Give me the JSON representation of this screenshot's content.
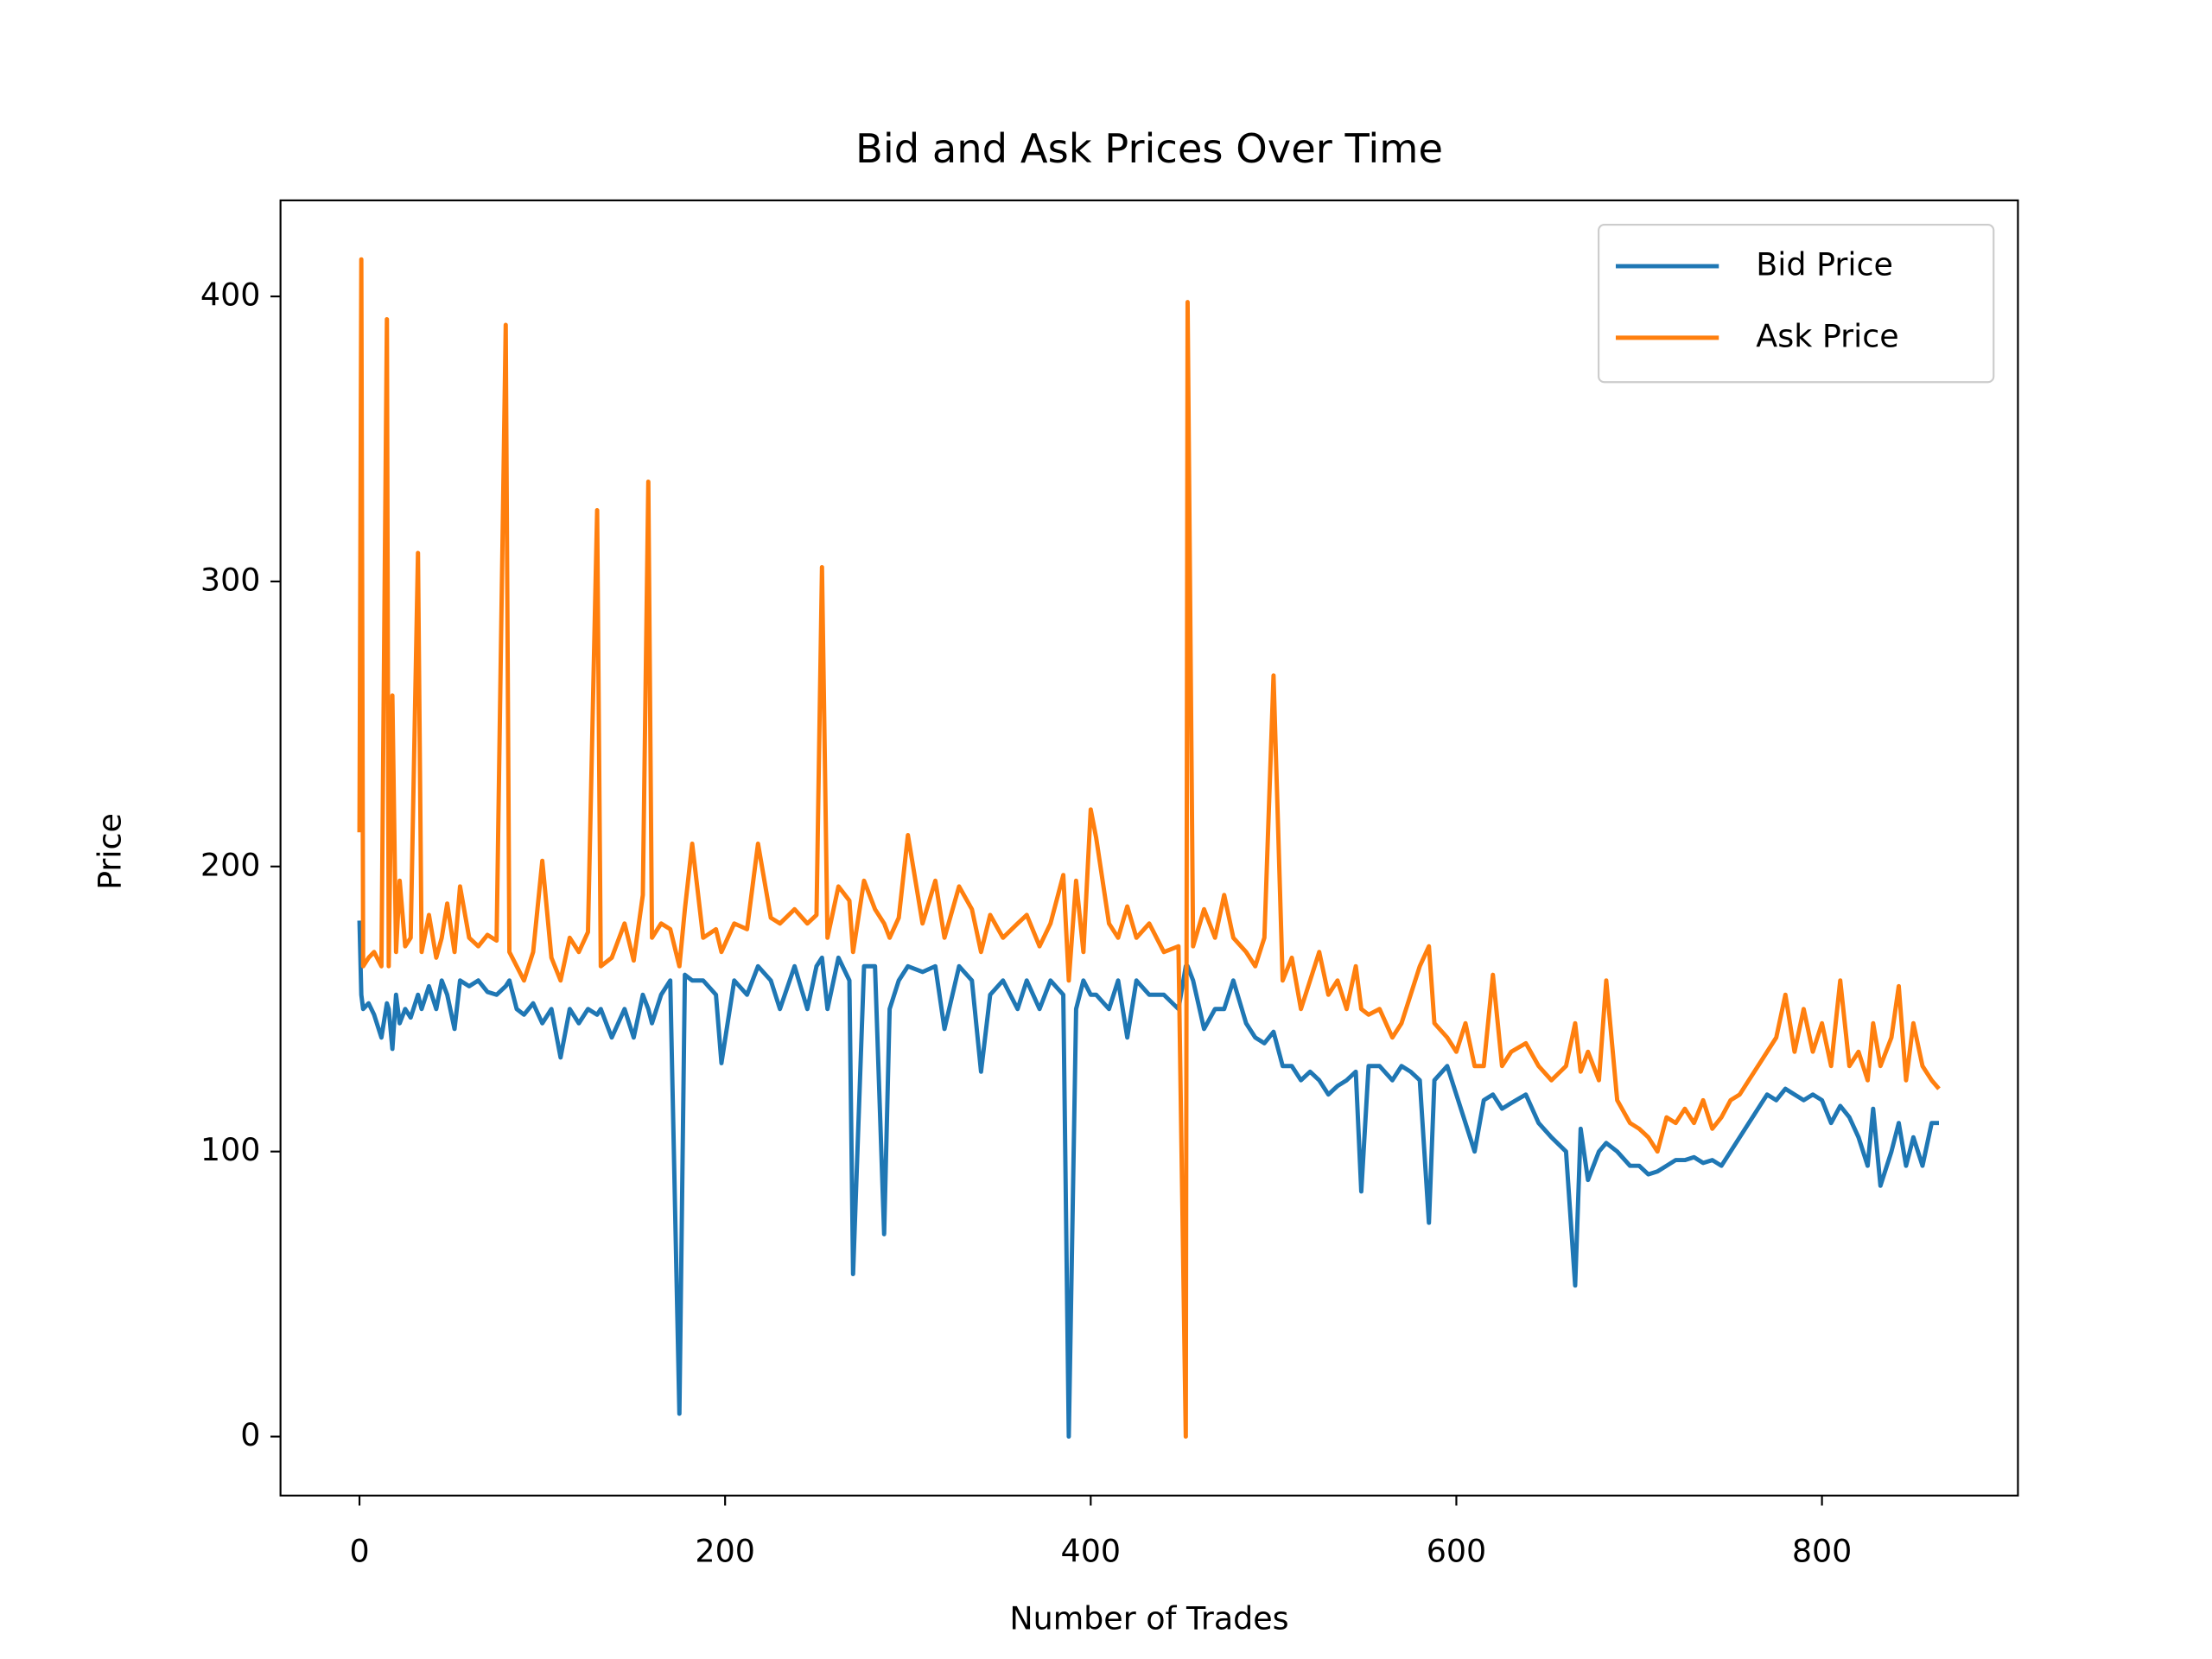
{
  "chart_data": {
    "type": "line",
    "title": "Bid and Ask Prices Over Time",
    "xlabel": "Number of Trades",
    "ylabel": "Price",
    "x": [
      0,
      1,
      2,
      5,
      8,
      12,
      15,
      16,
      18,
      20,
      22,
      25,
      28,
      32,
      34,
      38,
      42,
      45,
      48,
      52,
      55,
      60,
      65,
      70,
      75,
      80,
      82,
      86,
      90,
      95,
      100,
      105,
      110,
      115,
      120,
      125,
      130,
      132,
      138,
      145,
      150,
      155,
      158,
      160,
      165,
      170,
      175,
      178,
      182,
      188,
      195,
      198,
      205,
      212,
      218,
      225,
      230,
      238,
      245,
      250,
      253,
      256,
      262,
      268,
      270,
      276,
      282,
      287,
      290,
      295,
      300,
      308,
      315,
      320,
      328,
      335,
      340,
      345,
      352,
      360,
      365,
      372,
      378,
      385,
      388,
      392,
      396,
      400,
      403,
      410,
      415,
      420,
      425,
      432,
      440,
      448,
      452,
      453,
      456,
      462,
      468,
      473,
      478,
      485,
      490,
      495,
      500,
      505,
      510,
      515,
      520,
      525,
      530,
      535,
      540,
      545,
      548,
      552,
      558,
      565,
      570,
      575,
      580,
      585,
      588,
      595,
      600,
      605,
      610,
      615,
      620,
      625,
      630,
      638,
      645,
      652,
      660,
      665,
      668,
      672,
      678,
      682,
      688,
      695,
      700,
      705,
      710,
      715,
      720,
      725,
      730,
      735,
      740,
      745,
      750,
      755,
      760,
      765,
      770,
      775,
      780,
      785,
      790,
      795,
      800,
      805,
      810,
      815,
      820,
      825,
      828,
      832,
      838,
      842,
      846,
      850,
      855,
      860,
      864
    ],
    "series": [
      {
        "name": "Bid Price",
        "color": "#1f77b4",
        "values": [
          181,
          155,
          150,
          152,
          148,
          140,
          152,
          150,
          136,
          155,
          145,
          150,
          147,
          155,
          150,
          158,
          150,
          160,
          155,
          143,
          160,
          158,
          160,
          156,
          155,
          158,
          160,
          150,
          148,
          152,
          145,
          150,
          133,
          150,
          145,
          150,
          148,
          150,
          140,
          150,
          140,
          155,
          150,
          145,
          155,
          160,
          8,
          162,
          160,
          160,
          155,
          131,
          160,
          155,
          165,
          160,
          150,
          165,
          150,
          165,
          168,
          150,
          168,
          160,
          57,
          165,
          165,
          71,
          150,
          160,
          165,
          163,
          165,
          143,
          165,
          160,
          128,
          155,
          160,
          150,
          160,
          150,
          160,
          155,
          0,
          150,
          160,
          155,
          155,
          150,
          160,
          140,
          160,
          155,
          155,
          150,
          165,
          165,
          160,
          143,
          150,
          150,
          160,
          145,
          140,
          138,
          142,
          130,
          130,
          125,
          128,
          125,
          120,
          123,
          125,
          128,
          86,
          130,
          130,
          125,
          130,
          128,
          125,
          75,
          125,
          130,
          120,
          110,
          100,
          118,
          120,
          115,
          117,
          120,
          110,
          105,
          100,
          53,
          108,
          90,
          100,
          103,
          100,
          95,
          95,
          92,
          93,
          95,
          97,
          97,
          98,
          96,
          97,
          95,
          100,
          105,
          110,
          115,
          120,
          118,
          122,
          120,
          118,
          120,
          118,
          110,
          116,
          112,
          105,
          95,
          115,
          88,
          100,
          110,
          95,
          105,
          95,
          110,
          110
        ]
      },
      {
        "name": "Ask Price",
        "color": "#ff7f0e",
        "values": [
          212,
          413,
          165,
          168,
          170,
          165,
          392,
          165,
          260,
          170,
          195,
          172,
          175,
          310,
          170,
          183,
          168,
          175,
          187,
          170,
          193,
          175,
          172,
          176,
          174,
          390,
          170,
          165,
          160,
          170,
          202,
          168,
          160,
          175,
          170,
          177,
          325,
          165,
          168,
          180,
          167,
          190,
          335,
          175,
          180,
          178,
          165,
          185,
          208,
          175,
          178,
          170,
          180,
          178,
          208,
          182,
          180,
          185,
          180,
          183,
          305,
          175,
          193,
          188,
          170,
          195,
          185,
          180,
          175,
          182,
          211,
          180,
          195,
          175,
          193,
          185,
          170,
          183,
          175,
          180,
          183,
          172,
          180,
          197,
          160,
          195,
          170,
          220,
          210,
          180,
          175,
          186,
          175,
          180,
          170,
          172,
          0,
          398,
          172,
          185,
          175,
          190,
          175,
          170,
          165,
          175,
          267,
          160,
          168,
          150,
          160,
          170,
          155,
          160,
          150,
          165,
          150,
          148,
          150,
          140,
          145,
          155,
          165,
          172,
          145,
          140,
          135,
          145,
          130,
          130,
          162,
          130,
          135,
          138,
          130,
          125,
          130,
          145,
          128,
          135,
          125,
          160,
          118,
          110,
          108,
          105,
          100,
          112,
          110,
          115,
          110,
          118,
          108,
          112,
          118,
          120,
          125,
          130,
          135,
          140,
          155,
          135,
          150,
          135,
          145,
          130,
          160,
          130,
          135,
          125,
          145,
          130,
          140,
          158,
          125,
          145,
          130,
          125,
          122
        ]
      }
    ],
    "xlim": [
      -43.2,
      907.2
    ],
    "ylim": [
      -20.7,
      433.7
    ],
    "xticks": [
      0,
      200,
      400,
      600,
      800
    ],
    "yticks": [
      0,
      100,
      200,
      300,
      400
    ],
    "grid": false,
    "legend": "upper right"
  }
}
